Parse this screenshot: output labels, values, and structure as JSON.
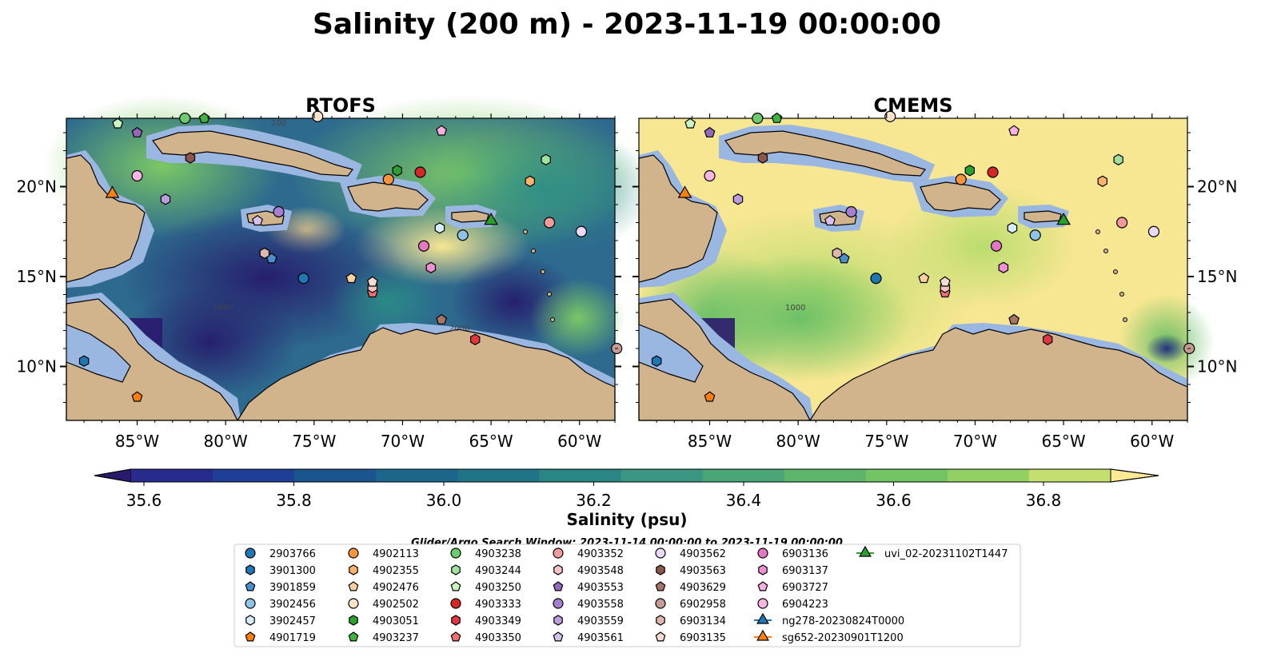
{
  "figure": {
    "title": "Salinity (200 m) - 2023-11-19 00:00:00",
    "panels": [
      {
        "title": "RTOFS"
      },
      {
        "title": "CMEMS"
      }
    ],
    "lon_ticks": [
      "85°W",
      "80°W",
      "75°W",
      "70°W",
      "65°W",
      "60°W"
    ],
    "lat_ticks": [
      "20°N",
      "15°N",
      "10°N"
    ],
    "contour_labels": [
      "200",
      "1000",
      "1000",
      "2000"
    ],
    "colorbar": {
      "label": "Salinity (psu)",
      "ticks": [
        "35.6",
        "35.8",
        "36.0",
        "36.2",
        "36.4",
        "36.6",
        "36.8"
      ],
      "colors": [
        "#2a1a6e",
        "#262b8c",
        "#1f3f96",
        "#1b5590",
        "#1b668a",
        "#1f7488",
        "#2a8585",
        "#3a9680",
        "#4aa676",
        "#5db56b",
        "#72c363",
        "#92d063",
        "#c4df6f",
        "#fbe993"
      ]
    },
    "search_window": "Glider/Argo Search Window: 2023-11-14 00:00:00 to 2023-11-19 00:00:00"
  },
  "legend": [
    {
      "id": "2903766",
      "marker": "circle",
      "color": "#1f77b4"
    },
    {
      "id": "3901300",
      "marker": "hexagon",
      "color": "#1f77b4"
    },
    {
      "id": "3901859",
      "marker": "pentagon",
      "color": "#4a90d0"
    },
    {
      "id": "3902456",
      "marker": "circle",
      "color": "#8fc3ea"
    },
    {
      "id": "3902457",
      "marker": "hexagon",
      "color": "#d6ecfa"
    },
    {
      "id": "4901719",
      "marker": "pentagon",
      "color": "#ff7f0e"
    },
    {
      "id": "4902113",
      "marker": "circle",
      "color": "#f8943c"
    },
    {
      "id": "4902355",
      "marker": "hexagon",
      "color": "#fbb26b"
    },
    {
      "id": "4902476",
      "marker": "pentagon",
      "color": "#fdd0a2"
    },
    {
      "id": "4902502",
      "marker": "circle",
      "color": "#fde4c8"
    },
    {
      "id": "4903051",
      "marker": "hexagon",
      "color": "#2ca02c"
    },
    {
      "id": "4903237",
      "marker": "pentagon",
      "color": "#3fb23f"
    },
    {
      "id": "4903238",
      "marker": "circle",
      "color": "#6ccb6c"
    },
    {
      "id": "4903244",
      "marker": "hexagon",
      "color": "#9ee29e"
    },
    {
      "id": "4903250",
      "marker": "pentagon",
      "color": "#c9f5c0"
    },
    {
      "id": "4903333",
      "marker": "circle",
      "color": "#d62728"
    },
    {
      "id": "4903349",
      "marker": "hexagon",
      "color": "#e0383c"
    },
    {
      "id": "4903350",
      "marker": "pentagon",
      "color": "#ee6f6f"
    },
    {
      "id": "4903352",
      "marker": "circle",
      "color": "#f39a9a"
    },
    {
      "id": "4903548",
      "marker": "hexagon",
      "color": "#f8c3c3"
    },
    {
      "id": "4903553",
      "marker": "pentagon",
      "color": "#9467bd"
    },
    {
      "id": "4903558",
      "marker": "circle",
      "color": "#a77fd0"
    },
    {
      "id": "4903559",
      "marker": "hexagon",
      "color": "#bb9ddd"
    },
    {
      "id": "4903561",
      "marker": "pentagon",
      "color": "#d5c1ee"
    },
    {
      "id": "4903562",
      "marker": "circle",
      "color": "#ead9f8"
    },
    {
      "id": "4903563",
      "marker": "hexagon",
      "color": "#8c564b"
    },
    {
      "id": "4903629",
      "marker": "pentagon",
      "color": "#a87466"
    },
    {
      "id": "6902958",
      "marker": "circle",
      "color": "#c49c94"
    },
    {
      "id": "6903134",
      "marker": "hexagon",
      "color": "#dcb8ae"
    },
    {
      "id": "6903135",
      "marker": "pentagon",
      "color": "#f5dcd2"
    },
    {
      "id": "6903136",
      "marker": "circle",
      "color": "#e377c2"
    },
    {
      "id": "6903137",
      "marker": "hexagon",
      "color": "#ec92d1"
    },
    {
      "id": "6903727",
      "marker": "pentagon",
      "color": "#f4b1df"
    },
    {
      "id": "6904223",
      "marker": "circle",
      "color": "#f7b6e4"
    },
    {
      "id": "ng278-20230824T0000",
      "marker": "triangle",
      "color": "#1f77b4",
      "line": true
    },
    {
      "id": "sg652-20230901T1200",
      "marker": "triangle",
      "color": "#ff7f0e",
      "line": true
    },
    {
      "id": "uvi_02-20231102T1447",
      "marker": "triangle",
      "color": "#2ca02c",
      "line": true
    }
  ],
  "markers": [
    {
      "id": "2903766",
      "lon": -75.6,
      "lat": 14.9
    },
    {
      "id": "3901300",
      "lon": -88.0,
      "lat": 10.3
    },
    {
      "id": "3901859",
      "lon": -77.4,
      "lat": 16.0
    },
    {
      "id": "3902456",
      "lon": -66.6,
      "lat": 17.3
    },
    {
      "id": "3902457",
      "lon": -67.9,
      "lat": 17.7
    },
    {
      "id": "4901719",
      "lon": -85.0,
      "lat": 8.3
    },
    {
      "id": "4902113",
      "lon": -70.8,
      "lat": 20.4
    },
    {
      "id": "4902355",
      "lon": -62.8,
      "lat": 20.3
    },
    {
      "id": "4902476",
      "lon": -72.9,
      "lat": 14.9
    },
    {
      "id": "4902502",
      "lon": -74.8,
      "lat": 23.9
    },
    {
      "id": "4903051",
      "lon": -70.3,
      "lat": 20.9
    },
    {
      "id": "4903237",
      "lon": -81.2,
      "lat": 23.8
    },
    {
      "id": "4903238",
      "lon": -82.3,
      "lat": 23.8
    },
    {
      "id": "4903244",
      "lon": -61.9,
      "lat": 21.5
    },
    {
      "id": "4903250",
      "lon": -86.1,
      "lat": 23.5
    },
    {
      "id": "4903333",
      "lon": -69.0,
      "lat": 20.8
    },
    {
      "id": "4903349",
      "lon": -65.9,
      "lat": 11.5
    },
    {
      "id": "4903350",
      "lon": -71.7,
      "lat": 14.1
    },
    {
      "id": "4903352",
      "lon": -61.7,
      "lat": 18.0
    },
    {
      "id": "4903548",
      "lon": -71.7,
      "lat": 14.4
    },
    {
      "id": "4903553",
      "lon": -85.0,
      "lat": 23.0
    },
    {
      "id": "4903558",
      "lon": -77.0,
      "lat": 18.6
    },
    {
      "id": "4903559",
      "lon": -83.4,
      "lat": 19.3
    },
    {
      "id": "4903561",
      "lon": -78.2,
      "lat": 18.1
    },
    {
      "id": "4903562",
      "lon": -59.9,
      "lat": 17.5
    },
    {
      "id": "4903563",
      "lon": -82.0,
      "lat": 21.6
    },
    {
      "id": "4903629",
      "lon": -67.8,
      "lat": 12.6
    },
    {
      "id": "6902958",
      "lon": -57.9,
      "lat": 11.0
    },
    {
      "id": "6903134",
      "lon": -77.8,
      "lat": 16.3
    },
    {
      "id": "6903135",
      "lon": -71.7,
      "lat": 14.7
    },
    {
      "id": "6903136",
      "lon": -68.8,
      "lat": 16.7
    },
    {
      "id": "6903137",
      "lon": -68.4,
      "lat": 15.5
    },
    {
      "id": "6903727",
      "lon": -67.8,
      "lat": 23.1
    },
    {
      "id": "6904223",
      "lon": -85.0,
      "lat": 20.6
    },
    {
      "id": "sg652-20230901T1200",
      "lon": -86.4,
      "lat": 19.6
    },
    {
      "id": "uvi_02-20231102T1447",
      "lon": -65.0,
      "lat": 18.1
    }
  ]
}
